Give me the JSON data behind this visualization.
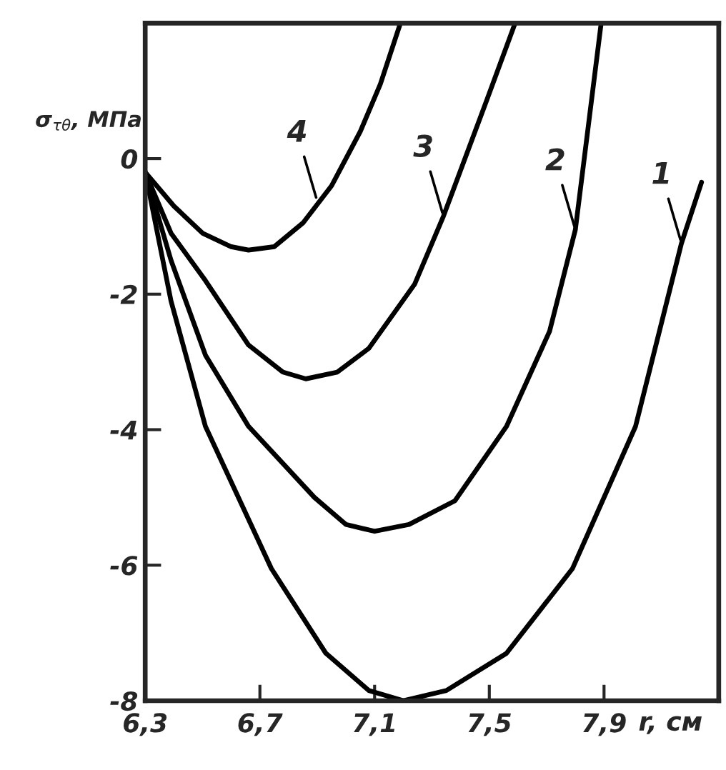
{
  "chart_data": {
    "type": "line",
    "xlabel": "r, см",
    "ylabel": "σ$_{τθ}$, МПа",
    "series": [
      {
        "color": "#000000",
        "x": [
          6.3,
          6.39,
          6.51,
          6.74,
          6.93,
          7.08,
          7.2,
          7.35,
          7.56,
          7.79,
          8.01,
          8.17,
          8.24
        ],
        "values": [
          -0.2,
          -2.1,
          -3.95,
          -6.05,
          -7.3,
          -7.85,
          -8.0,
          -7.85,
          -7.3,
          -6.05,
          -3.95,
          -1.25,
          -0.35
        ]
      },
      {
        "color": "#000000",
        "x": [
          6.3,
          6.39,
          6.51,
          6.66,
          6.89,
          7.0,
          7.1,
          7.22,
          7.38,
          7.56,
          7.71,
          7.8,
          7.89
        ],
        "values": [
          -0.2,
          -1.5,
          -2.9,
          -3.95,
          -5.0,
          -5.4,
          -5.5,
          -5.4,
          -5.05,
          -3.95,
          -2.55,
          -1.05,
          2.0
        ]
      },
      {
        "color": "#000000",
        "x": [
          6.3,
          6.39,
          6.51,
          6.66,
          6.78,
          6.86,
          6.97,
          7.08,
          7.24,
          7.34,
          7.49,
          7.59
        ],
        "values": [
          -0.2,
          -1.1,
          -1.8,
          -2.75,
          -3.15,
          -3.25,
          -3.15,
          -2.8,
          -1.85,
          -0.85,
          0.85,
          2.0
        ]
      },
      {
        "color": "#000000",
        "x": [
          6.3,
          6.4,
          6.5,
          6.6,
          6.66,
          6.75,
          6.85,
          6.95,
          7.05,
          7.12,
          7.19
        ],
        "values": [
          -0.2,
          -0.7,
          -1.1,
          -1.3,
          -1.35,
          -1.3,
          -0.95,
          -0.4,
          0.4,
          1.1,
          2.0
        ]
      }
    ],
    "annotations": [
      {
        "text": "1",
        "x": 8.17,
        "y": -1.25
      },
      {
        "text": "2",
        "x": 7.8,
        "y": -1.05
      },
      {
        "text": "3",
        "x": 7.34,
        "y": -0.85
      },
      {
        "text": "4",
        "x": 6.9,
        "y": -0.63
      }
    ],
    "xlim": [
      6.3,
      8.3
    ],
    "ylim": [
      -8,
      2
    ],
    "xticks": [
      {
        "value": 6.3,
        "label": "6,3"
      },
      {
        "value": 6.7,
        "label": "6,7"
      },
      {
        "value": 7.1,
        "label": "7,1"
      },
      {
        "value": 7.5,
        "label": "7,5"
      },
      {
        "value": 7.9,
        "label": "7,9"
      }
    ],
    "yticks": [
      0,
      -2,
      -4,
      -6,
      -8
    ],
    "grid": false,
    "legend": false,
    "marker": "none",
    "line_style": "solid"
  }
}
